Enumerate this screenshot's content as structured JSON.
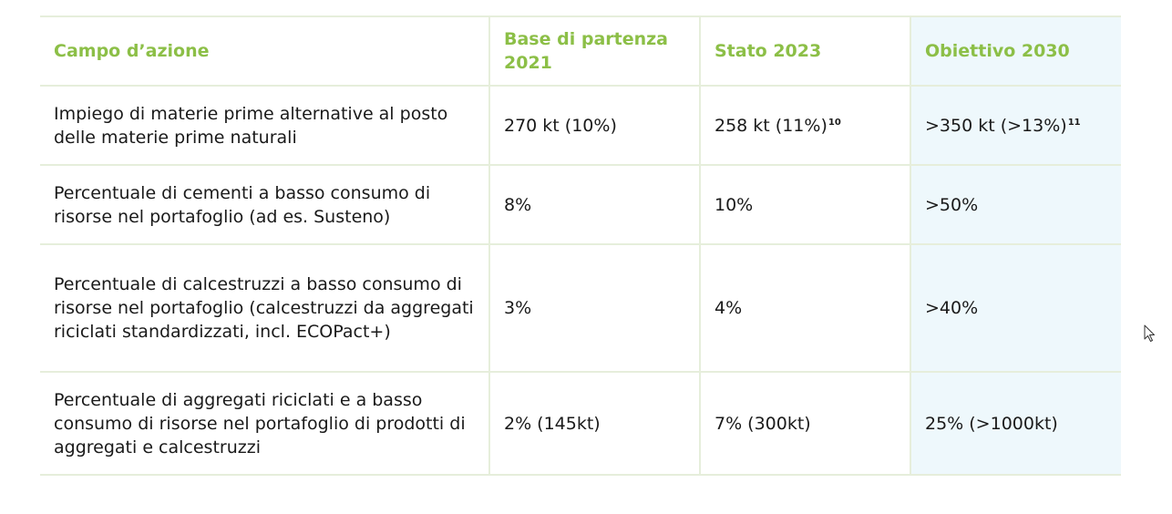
{
  "table": {
    "headers": {
      "campo": "Campo d’azione",
      "base": "Base di partenza 2021",
      "stato": "Stato 2023",
      "obiettivo": "Obiettivo 2030"
    },
    "rows": [
      {
        "campo": "Impiego di materie prime alternative al posto delle materie prime naturali",
        "base": "270 kt (10%)",
        "stato": "258 kt (11%)",
        "stato_footnote": "10",
        "obiettivo": ">350 kt (>13%)",
        "obiettivo_footnote": "11"
      },
      {
        "campo": "Percentuale di cementi a basso consumo di risorse nel portafoglio (ad es. Susteno)",
        "base": "8%",
        "stato": "10%",
        "obiettivo": ">50%"
      },
      {
        "campo": "Percentuale di calcestruzzi a basso consumo di risorse nel portafoglio (calcestruzzi da aggregati riciclati standardizzati, incl. ECOPact+)",
        "base": "3%",
        "stato": "4%",
        "obiettivo": ">40%"
      },
      {
        "campo": "Percentuale di aggregati riciclati e a basso consumo di risorse nel portafoglio di prodotti di aggregati e calcestruzzi",
        "base": "2% (145kt)",
        "stato": "7% (300kt)",
        "obiettivo": "25% (>1000kt)"
      }
    ]
  },
  "colors": {
    "header_text": "#8cbf47",
    "border": "#e6eedb",
    "target_column_bg": "#eef8fc",
    "body_text": "#1a1a1a"
  },
  "icons": {
    "cursor": "mouse-pointer-icon"
  }
}
